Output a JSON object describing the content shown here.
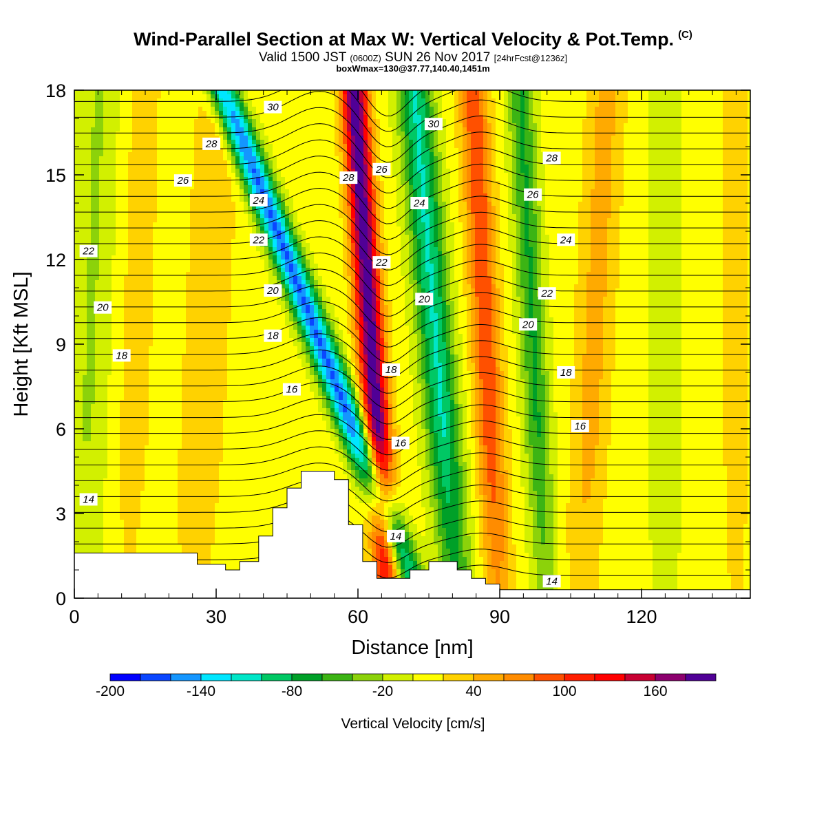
{
  "header": {
    "title": "Wind-Parallel Section at Max W: Vertical Velocity & Pot.Temp.",
    "copyright": "(C)",
    "subtitle_prefix": "Valid 1500 JST",
    "subtitle_zulu": "(0600Z)",
    "subtitle_date": "SUN 26 Nov 2017",
    "subtitle_fcst": "[24hrFcst@1236z]",
    "annotation": "boxWmax=130@37.77,140.40,1451m"
  },
  "colors": {
    "palette": [
      "#0000ff",
      "#0a46ff",
      "#1496ff",
      "#00e6ff",
      "#00e6c8",
      "#00c864",
      "#00a028",
      "#3cb414",
      "#8cd20a",
      "#d2f000",
      "#ffff00",
      "#ffd200",
      "#ffaa00",
      "#ff8c00",
      "#ff5000",
      "#ff1e00",
      "#ff0000",
      "#c80032",
      "#8c006e",
      "#500096"
    ]
  },
  "chart_data": {
    "type": "heatmap",
    "xlabel": "Distance [nm]",
    "ylabel": "Height [Kft MSL]",
    "xlim": [
      0,
      143
    ],
    "ylim": [
      0,
      18
    ],
    "xticks": [
      0,
      30,
      60,
      90,
      120
    ],
    "yticks": [
      0,
      3,
      6,
      9,
      12,
      15,
      18
    ],
    "colorbar": {
      "label": "Vertical Velocity [cm/s]",
      "levels": [
        -200,
        -180,
        -160,
        -140,
        -120,
        -100,
        -80,
        -60,
        -40,
        -20,
        0,
        20,
        40,
        60,
        80,
        100,
        120,
        140,
        160,
        180,
        200
      ],
      "tick_labels": [
        -200,
        -140,
        -80,
        -20,
        40,
        100,
        160
      ]
    },
    "vertical_velocity_bands": [
      {
        "name": "weak-down-west",
        "base_x": 3,
        "slope": 0.2,
        "amp": -30,
        "width": 5
      },
      {
        "name": "weak-up-west",
        "base_x": 27,
        "slope": 0.3,
        "amp": 28,
        "width": 5
      },
      {
        "name": "weak-up-west2",
        "base_x": 12,
        "slope": 0.2,
        "amp": 20,
        "width": 5
      },
      {
        "name": "downdraft-main",
        "base_x": 59,
        "slope": -2.3,
        "amp": -170,
        "width": 3.2
      },
      {
        "name": "updraft-main",
        "base_x": 64,
        "slope": -0.4,
        "amp": 190,
        "width": 2.8
      },
      {
        "name": "downdraft-second",
        "base_x": 78,
        "slope": -0.5,
        "amp": -110,
        "width": 3.6
      },
      {
        "name": "updraft-second",
        "base_x": 88,
        "slope": -0.3,
        "amp": 90,
        "width": 3.0
      },
      {
        "name": "downdraft-third",
        "base_x": 98,
        "slope": -0.3,
        "amp": -70,
        "width": 2.8
      },
      {
        "name": "updraft-third",
        "base_x": 109,
        "slope": 0.3,
        "amp": 40,
        "width": 4
      },
      {
        "name": "weak-down-east",
        "base_x": 125,
        "slope": 0,
        "amp": -25,
        "width": 3.5
      },
      {
        "name": "weak-up-east",
        "base_x": 140,
        "slope": 0,
        "amp": 25,
        "width": 3
      }
    ],
    "theta_labels": [
      {
        "x": 3,
        "y": 3.5,
        "text": "14"
      },
      {
        "x": 68,
        "y": 2.2,
        "text": "14"
      },
      {
        "x": 101,
        "y": 0.6,
        "text": "14"
      },
      {
        "x": 46,
        "y": 7.4,
        "text": "16"
      },
      {
        "x": 69,
        "y": 5.5,
        "text": "16"
      },
      {
        "x": 107,
        "y": 6.1,
        "text": "16"
      },
      {
        "x": 10,
        "y": 8.6,
        "text": "18"
      },
      {
        "x": 42,
        "y": 9.3,
        "text": "18"
      },
      {
        "x": 67,
        "y": 8.1,
        "text": "18"
      },
      {
        "x": 104,
        "y": 8.0,
        "text": "18"
      },
      {
        "x": 6,
        "y": 10.3,
        "text": "20"
      },
      {
        "x": 42,
        "y": 10.9,
        "text": "20"
      },
      {
        "x": 74,
        "y": 10.6,
        "text": "20"
      },
      {
        "x": 96,
        "y": 9.7,
        "text": "20"
      },
      {
        "x": 3,
        "y": 12.3,
        "text": "22"
      },
      {
        "x": 39,
        "y": 12.7,
        "text": "22"
      },
      {
        "x": 65,
        "y": 11.9,
        "text": "22"
      },
      {
        "x": 100,
        "y": 10.8,
        "text": "22"
      },
      {
        "x": 39,
        "y": 14.1,
        "text": "24"
      },
      {
        "x": 73,
        "y": 14.0,
        "text": "24"
      },
      {
        "x": 104,
        "y": 12.7,
        "text": "24"
      },
      {
        "x": 23,
        "y": 14.8,
        "text": "26"
      },
      {
        "x": 65,
        "y": 15.2,
        "text": "26"
      },
      {
        "x": 97,
        "y": 14.3,
        "text": "26"
      },
      {
        "x": 29,
        "y": 16.1,
        "text": "28"
      },
      {
        "x": 58,
        "y": 14.9,
        "text": "28"
      },
      {
        "x": 101,
        "y": 15.6,
        "text": "28"
      },
      {
        "x": 42,
        "y": 17.4,
        "text": "30"
      },
      {
        "x": 76,
        "y": 16.8,
        "text": "30"
      }
    ],
    "terrain": [
      {
        "x": 0,
        "h": 1.6
      },
      {
        "x": 26,
        "h": 1.6
      },
      {
        "x": 26,
        "h": 1.2
      },
      {
        "x": 32,
        "h": 1.2
      },
      {
        "x": 32,
        "h": 1.0
      },
      {
        "x": 35,
        "h": 1.0
      },
      {
        "x": 35,
        "h": 1.3
      },
      {
        "x": 39,
        "h": 1.3
      },
      {
        "x": 39,
        "h": 2.2
      },
      {
        "x": 42,
        "h": 2.2
      },
      {
        "x": 42,
        "h": 3.2
      },
      {
        "x": 45,
        "h": 3.2
      },
      {
        "x": 45,
        "h": 3.9
      },
      {
        "x": 48,
        "h": 3.9
      },
      {
        "x": 48,
        "h": 4.5
      },
      {
        "x": 55,
        "h": 4.5
      },
      {
        "x": 55,
        "h": 4.2
      },
      {
        "x": 58,
        "h": 4.2
      },
      {
        "x": 58,
        "h": 2.6
      },
      {
        "x": 61,
        "h": 2.6
      },
      {
        "x": 61,
        "h": 1.3
      },
      {
        "x": 64,
        "h": 1.3
      },
      {
        "x": 64,
        "h": 0.7
      },
      {
        "x": 71,
        "h": 0.7
      },
      {
        "x": 71,
        "h": 1.0
      },
      {
        "x": 75,
        "h": 1.0
      },
      {
        "x": 75,
        "h": 1.3
      },
      {
        "x": 81,
        "h": 1.3
      },
      {
        "x": 81,
        "h": 1.0
      },
      {
        "x": 84,
        "h": 1.0
      },
      {
        "x": 84,
        "h": 0.7
      },
      {
        "x": 87,
        "h": 0.7
      },
      {
        "x": 87,
        "h": 0.5
      },
      {
        "x": 90,
        "h": 0.5
      },
      {
        "x": 90,
        "h": 0.3
      },
      {
        "x": 143,
        "h": 0.3
      }
    ]
  }
}
